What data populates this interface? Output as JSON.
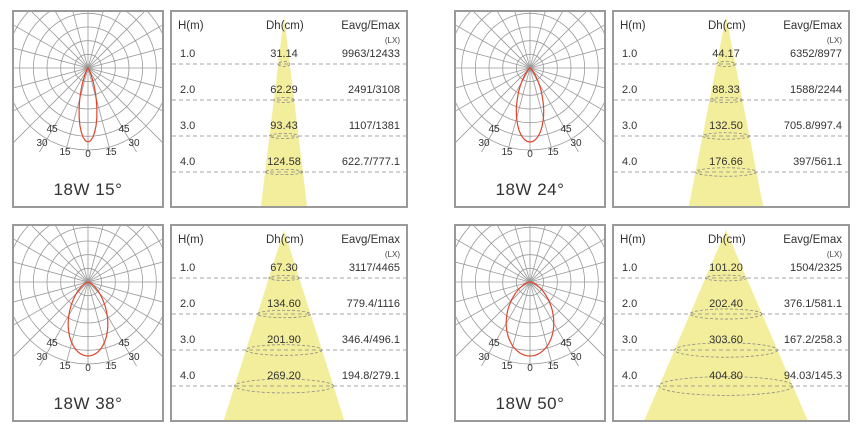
{
  "panels": [
    {
      "caption": "18W 15°",
      "angle": 15,
      "polar_labels": [
        "45",
        "30",
        "15",
        "0",
        "15",
        "30",
        "45"
      ],
      "header": {
        "h": "H(m)",
        "dh": "Dh(cm)",
        "e": "Eavg/Emax",
        "unit": "(LX)"
      },
      "rows": [
        {
          "h": "1.0",
          "dh": "31.14",
          "e": "9963/12433"
        },
        {
          "h": "2.0",
          "dh": "62.29",
          "e": "2491/3108"
        },
        {
          "h": "3.0",
          "dh": "93.43",
          "e": "1107/1381"
        },
        {
          "h": "4.0",
          "dh": "124.58",
          "e": "622.7/777.1"
        }
      ]
    },
    {
      "caption": "18W 24°",
      "angle": 24,
      "polar_labels": [
        "45",
        "30",
        "15",
        "0",
        "15",
        "30",
        "45"
      ],
      "header": {
        "h": "H(m)",
        "dh": "Dh(cm)",
        "e": "Eavg/Emax",
        "unit": "(LX)"
      },
      "rows": [
        {
          "h": "1.0",
          "dh": "44.17",
          "e": "6352/8977"
        },
        {
          "h": "2.0",
          "dh": "88.33",
          "e": "1588/2244"
        },
        {
          "h": "3.0",
          "dh": "132.50",
          "e": "705.8/997.4"
        },
        {
          "h": "4.0",
          "dh": "176.66",
          "e": "397/561.1"
        }
      ]
    },
    {
      "caption": "18W 38°",
      "angle": 38,
      "polar_labels": [
        "45",
        "30",
        "15",
        "0",
        "15",
        "30",
        "45"
      ],
      "header": {
        "h": "H(m)",
        "dh": "Dh(cm)",
        "e": "Eavg/Emax",
        "unit": "(LX)"
      },
      "rows": [
        {
          "h": "1.0",
          "dh": "67.30",
          "e": "3117/4465"
        },
        {
          "h": "2.0",
          "dh": "134.60",
          "e": "779.4/1116"
        },
        {
          "h": "3.0",
          "dh": "201.90",
          "e": "346.4/496.1"
        },
        {
          "h": "4.0",
          "dh": "269.20",
          "e": "194.8/279.1"
        }
      ]
    },
    {
      "caption": "18W 50°",
      "angle": 50,
      "polar_labels": [
        "45",
        "30",
        "15",
        "0",
        "15",
        "30",
        "45"
      ],
      "header": {
        "h": "H(m)",
        "dh": "Dh(cm)",
        "e": "Eavg/Emax",
        "unit": "(LX)"
      },
      "rows": [
        {
          "h": "1.0",
          "dh": "101.20",
          "e": "1504/2325"
        },
        {
          "h": "2.0",
          "dh": "202.40",
          "e": "376.1/581.1"
        },
        {
          "h": "3.0",
          "dh": "303.60",
          "e": "167.2/258.3"
        },
        {
          "h": "4.0",
          "dh": "404.80",
          "e": "94.03/145.3"
        }
      ]
    }
  ],
  "colors": {
    "beam": "#f3ee9c",
    "curve": "#e0452c",
    "grid": "#9a9a9a",
    "dash": "#8a8a8a"
  }
}
